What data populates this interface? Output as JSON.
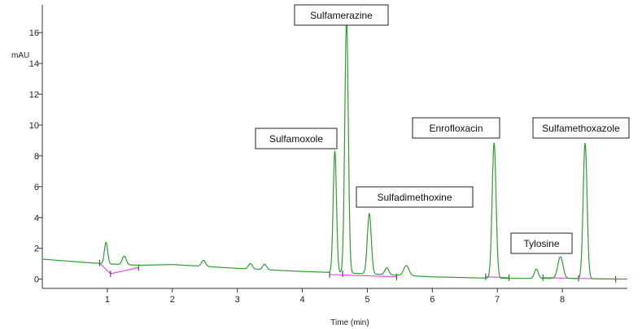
{
  "chart_data": {
    "type": "line",
    "xlabel": "Time (min)",
    "ylabel": "mAU",
    "xlim": [
      0,
      9.0
    ],
    "ylim": [
      -0.6,
      17.8
    ],
    "x_ticks": [
      1,
      2,
      3,
      4,
      5,
      6,
      7,
      8
    ],
    "y_ticks": [
      0,
      2,
      4,
      6,
      8,
      10,
      12,
      14,
      16
    ],
    "y_tick_labels": [
      "0",
      "2",
      "4",
      "6",
      "8",
      "10",
      "12",
      "14",
      "16"
    ],
    "grid": false,
    "series": [
      {
        "line_color": "#2e9e2e",
        "baseline": [
          [
            0,
            1.3
          ],
          [
            0.6,
            1.1
          ],
          [
            0.95,
            1.0
          ],
          [
            1.5,
            0.9
          ],
          [
            2.0,
            0.95
          ],
          [
            3.0,
            0.7
          ],
          [
            4.0,
            0.5
          ],
          [
            5.0,
            0.35
          ],
          [
            6.0,
            0.15
          ],
          [
            7.0,
            0.05
          ],
          [
            8.0,
            0.05
          ],
          [
            9.0,
            0.0
          ]
        ],
        "peaks": [
          {
            "rt": 0.98,
            "height": 1.4,
            "width": 0.025
          },
          {
            "rt": 1.26,
            "height": 0.55,
            "width": 0.03
          },
          {
            "rt": 2.48,
            "height": 0.4,
            "width": 0.03
          },
          {
            "rt": 3.2,
            "height": 0.35,
            "width": 0.03
          },
          {
            "rt": 3.42,
            "height": 0.35,
            "width": 0.03
          },
          {
            "rt": 4.5,
            "height": 7.9,
            "width": 0.025
          },
          {
            "rt": 4.68,
            "height": 16.4,
            "width": 0.027
          },
          {
            "rt": 5.03,
            "height": 3.9,
            "width": 0.03
          },
          {
            "rt": 5.3,
            "height": 0.45,
            "width": 0.03
          },
          {
            "rt": 5.6,
            "height": 0.65,
            "width": 0.04
          },
          {
            "rt": 6.95,
            "height": 8.8,
            "width": 0.03
          },
          {
            "rt": 7.6,
            "height": 0.6,
            "width": 0.03
          },
          {
            "rt": 7.97,
            "height": 1.4,
            "width": 0.04
          },
          {
            "rt": 8.35,
            "height": 8.8,
            "width": 0.03
          }
        ]
      }
    ],
    "integration_baselines": {
      "color": "#e64de6",
      "segments": [
        [
          [
            0.88,
            1.05
          ],
          [
            1.05,
            0.35
          ],
          [
            1.48,
            0.75
          ]
        ],
        [
          [
            4.42,
            0.3
          ],
          [
            5.45,
            0.15
          ]
        ],
        [
          [
            6.82,
            0.15
          ],
          [
            7.18,
            0.1
          ]
        ],
        [
          [
            7.7,
            0.1
          ],
          [
            8.25,
            0.05
          ],
          [
            8.82,
            0.0
          ]
        ]
      ],
      "tick_marks": [
        [
          0.88,
          1.05
        ],
        [
          1.05,
          0.35
        ],
        [
          1.48,
          0.75
        ],
        [
          4.42,
          0.3
        ],
        [
          4.62,
          0.35
        ],
        [
          5.45,
          0.15
        ],
        [
          6.82,
          0.15
        ],
        [
          7.18,
          0.1
        ],
        [
          7.7,
          0.1
        ],
        [
          8.25,
          0.05
        ],
        [
          8.82,
          0.0
        ]
      ]
    },
    "annotations": [
      {
        "text": "Sulfamerazine",
        "peak_rt": 4.68
      },
      {
        "text": "Sulfamoxole",
        "peak_rt": 4.5
      },
      {
        "text": "Sulfadimethoxine",
        "peak_rt": 5.03
      },
      {
        "text": "Enrofloxacin",
        "peak_rt": 6.95
      },
      {
        "text": "Sulfamethoxazole",
        "peak_rt": 8.35
      },
      {
        "text": "Tylosine",
        "peak_rt": 7.97
      }
    ]
  }
}
